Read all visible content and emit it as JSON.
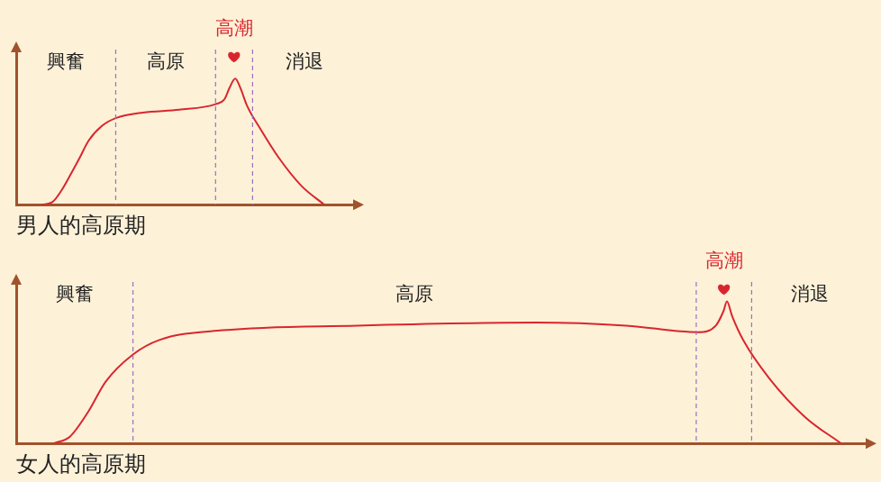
{
  "chart_data": [
    {
      "type": "line",
      "title": "男人的高原期",
      "x": [
        7.5,
        10.7,
        13.3,
        16,
        18.7,
        21.3,
        25.3,
        29.3,
        37.3,
        48,
        58.7,
        61.3,
        62.9,
        64.5,
        65.9,
        68,
        72,
        77.3,
        84,
        90.7
      ],
      "values": [
        0,
        1.8,
        9.1,
        19.4,
        30.3,
        41.2,
        50.9,
        55.8,
        59.4,
        61.2,
        64.8,
        67.9,
        75.8,
        81.2,
        75.8,
        63.6,
        48.5,
        30.3,
        12.1,
        0
      ],
      "color": "#d9262e",
      "xlim": [
        0,
        100
      ],
      "ylim": [
        0,
        100
      ],
      "grid": false,
      "tick_labels": false,
      "phases": [
        {
          "label": "興奮",
          "start": 0,
          "end": 29.3
        },
        {
          "label": "高原",
          "start": 29.3,
          "end": 58.7
        },
        {
          "label": "高潮",
          "start": 58.7,
          "end": 69.6
        },
        {
          "label": "消退",
          "start": 69.6,
          "end": 100
        }
      ]
    },
    {
      "type": "line",
      "title": "女人的高原期",
      "x": [
        4.4,
        6.3,
        8.4,
        10.5,
        13.7,
        16.8,
        24.2,
        40,
        61.1,
        71.6,
        80,
        82.1,
        83,
        83.4,
        84,
        85.3,
        88.4,
        92.6,
        96.8
      ],
      "values": [
        0,
        4.2,
        19.2,
        38.3,
        55.1,
        64.1,
        70.1,
        73,
        74.9,
        73,
        68.9,
        73,
        82,
        88,
        79,
        64.1,
        40.1,
        16.2,
        0
      ],
      "color": "#d9262e",
      "xlim": [
        0,
        100
      ],
      "ylim": [
        0,
        100
      ],
      "grid": false,
      "tick_labels": false,
      "phases": [
        {
          "label": "興奮",
          "start": 0,
          "end": 13.7
        },
        {
          "label": "高原",
          "start": 13.7,
          "end": 79.8
        },
        {
          "label": "高潮",
          "start": 79.8,
          "end": 86.3
        },
        {
          "label": "消退",
          "start": 86.3,
          "end": 100
        }
      ]
    }
  ]
}
